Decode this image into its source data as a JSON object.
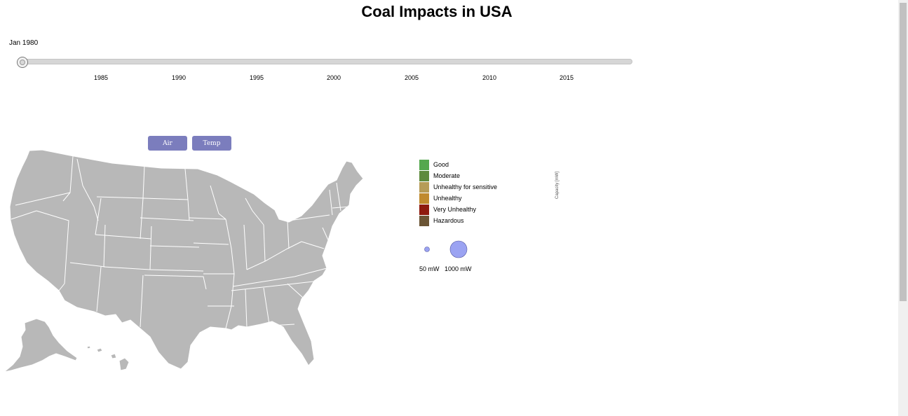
{
  "page": {
    "title": "Coal Impacts in USA"
  },
  "slider": {
    "current_label": "Jan 1980",
    "ticks": [
      "1985",
      "1990",
      "1995",
      "2000",
      "2005",
      "2010",
      "2015"
    ]
  },
  "buttons": {
    "air": "Air",
    "temp": "Temp"
  },
  "legend": {
    "items": [
      {
        "label": "Good",
        "color": "#55a84e"
      },
      {
        "label": "Moderate",
        "color": "#5e8a3c"
      },
      {
        "label": "Unhealthy for sensitive",
        "color": "#b69c57"
      },
      {
        "label": "Unhealthy",
        "color": "#c08a2e"
      },
      {
        "label": "Very Unhealthy",
        "color": "#8e1a0e"
      },
      {
        "label": "Hazardous",
        "color": "#6b5535"
      }
    ]
  },
  "size_legend": {
    "small_label": "50 mW",
    "large_label": "1000 mW",
    "fill_color": "#9ba3f2"
  },
  "capacity_axis_label": "Capacity [mW]",
  "map_color": "#b8b8b8"
}
